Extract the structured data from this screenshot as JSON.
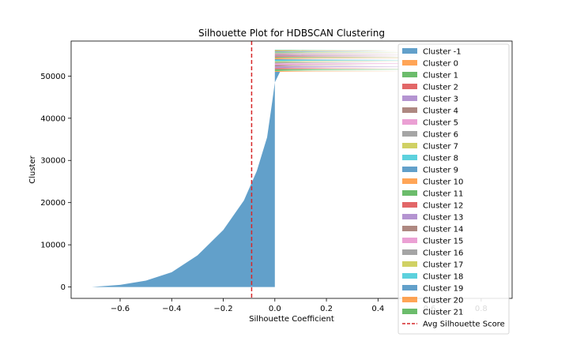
{
  "chart_data": {
    "type": "area",
    "title": "Silhouette Plot for HDBSCAN Clustering",
    "xlabel": "Silhouette Coefficient",
    "ylabel": "Cluster",
    "xlim": [
      -0.79,
      0.92
    ],
    "ylim": [
      -2700,
      58300
    ],
    "xticks": [
      -0.6,
      -0.4,
      -0.2,
      0.0,
      0.2,
      0.4,
      0.6,
      0.8
    ],
    "xtick_labels": [
      "−0.6",
      "−0.4",
      "−0.2",
      "0.0",
      "0.2",
      "0.4",
      "0.6",
      "0.8"
    ],
    "yticks": [
      0,
      10000,
      20000,
      30000,
      40000,
      50000
    ],
    "ytick_labels": [
      "0",
      "10000",
      "20000",
      "30000",
      "40000",
      "50000"
    ],
    "grid": false,
    "legend_position": "top-right",
    "avg_silhouette_score": -0.09,
    "series": [
      {
        "name": "Cluster -1",
        "color": "#1f77b4",
        "y_start": 0,
        "y_end": 51000,
        "profile": [
          [
            -0.71,
            0
          ],
          [
            -0.6,
            500
          ],
          [
            -0.5,
            1500
          ],
          [
            -0.4,
            3500
          ],
          [
            -0.3,
            7500
          ],
          [
            -0.2,
            13500
          ],
          [
            -0.12,
            20500
          ],
          [
            -0.07,
            27500
          ],
          [
            -0.03,
            35500
          ],
          [
            -0.01,
            44000
          ],
          [
            0.0,
            48500
          ],
          [
            0.02,
            51000
          ]
        ]
      },
      {
        "name": "Cluster 0",
        "color": "#ff7f0e",
        "y_start": 51000,
        "y_end": 51200,
        "max_s": 0.55
      },
      {
        "name": "Cluster 1",
        "color": "#2ca02c",
        "y_start": 51200,
        "y_end": 51600,
        "max_s": 0.6
      },
      {
        "name": "Cluster 2",
        "color": "#d62728",
        "y_start": 51600,
        "y_end": 51900,
        "max_s": 0.5
      },
      {
        "name": "Cluster 3",
        "color": "#9467bd",
        "y_start": 51900,
        "y_end": 52300,
        "max_s": 0.65
      },
      {
        "name": "Cluster 4",
        "color": "#8c564b",
        "y_start": 52300,
        "y_end": 52600,
        "max_s": 0.45
      },
      {
        "name": "Cluster 5",
        "color": "#e377c2",
        "y_start": 52600,
        "y_end": 53000,
        "max_s": 0.7
      },
      {
        "name": "Cluster 6",
        "color": "#7f7f7f",
        "y_start": 53000,
        "y_end": 53300,
        "max_s": 0.5
      },
      {
        "name": "Cluster 7",
        "color": "#bcbd22",
        "y_start": 53300,
        "y_end": 53500,
        "max_s": 0.55
      },
      {
        "name": "Cluster 8",
        "color": "#17becf",
        "y_start": 53500,
        "y_end": 53800,
        "max_s": 0.6
      },
      {
        "name": "Cluster 9",
        "color": "#1f77b4",
        "y_start": 53800,
        "y_end": 54000,
        "max_s": 0.5
      },
      {
        "name": "Cluster 10",
        "color": "#ff7f0e",
        "y_start": 54000,
        "y_end": 54300,
        "max_s": 0.62
      },
      {
        "name": "Cluster 11",
        "color": "#2ca02c",
        "y_start": 54300,
        "y_end": 54500,
        "max_s": 0.5
      },
      {
        "name": "Cluster 12",
        "color": "#d62728",
        "y_start": 54500,
        "y_end": 54700,
        "max_s": 0.55
      },
      {
        "name": "Cluster 13",
        "color": "#9467bd",
        "y_start": 54700,
        "y_end": 54900,
        "max_s": 0.5
      },
      {
        "name": "Cluster 14",
        "color": "#8c564b",
        "y_start": 54900,
        "y_end": 55100,
        "max_s": 0.6
      },
      {
        "name": "Cluster 15",
        "color": "#e377c2",
        "y_start": 55100,
        "y_end": 55250,
        "max_s": 0.5
      },
      {
        "name": "Cluster 16",
        "color": "#7f7f7f",
        "y_start": 55250,
        "y_end": 55450,
        "max_s": 0.55
      },
      {
        "name": "Cluster 17",
        "color": "#bcbd22",
        "y_start": 55450,
        "y_end": 55600,
        "max_s": 0.6
      },
      {
        "name": "Cluster 18",
        "color": "#17becf",
        "y_start": 55600,
        "y_end": 55750,
        "max_s": 0.5
      },
      {
        "name": "Cluster 19",
        "color": "#1f77b4",
        "y_start": 55750,
        "y_end": 55900,
        "max_s": 0.55
      },
      {
        "name": "Cluster 20",
        "color": "#ff7f0e",
        "y_start": 55900,
        "y_end": 56050,
        "max_s": 0.5
      },
      {
        "name": "Cluster 21",
        "color": "#2ca02c",
        "y_start": 56050,
        "y_end": 56200,
        "max_s": 0.45
      }
    ],
    "avg_line": {
      "name": "Avg Silhouette Score",
      "color": "#d62728"
    }
  }
}
